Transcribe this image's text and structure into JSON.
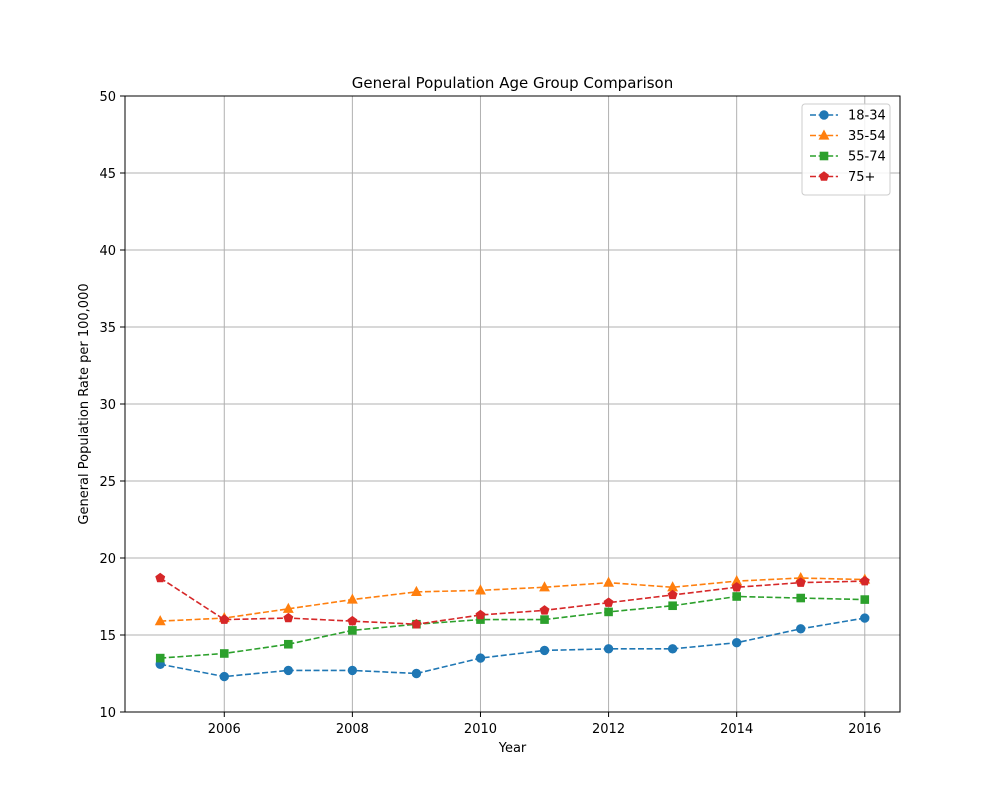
{
  "chart_data": {
    "type": "line",
    "title": "General Population Age Group Comparison",
    "xlabel": "Year",
    "ylabel": "General Population Rate per 100,000",
    "x": [
      2005,
      2006,
      2007,
      2008,
      2009,
      2010,
      2011,
      2012,
      2013,
      2014,
      2015,
      2016
    ],
    "xlim": [
      2004.45,
      2016.55
    ],
    "ylim": [
      10,
      50
    ],
    "xticks": [
      2006,
      2008,
      2010,
      2012,
      2014,
      2016
    ],
    "yticks": [
      10,
      15,
      20,
      25,
      30,
      35,
      40,
      45,
      50
    ],
    "grid": true,
    "legend_position": "top-right",
    "series": [
      {
        "name": "18-34",
        "color": "#1f77b4",
        "marker": "circle",
        "values": [
          13.1,
          12.3,
          12.7,
          12.7,
          12.5,
          13.5,
          14.0,
          14.1,
          14.1,
          14.5,
          15.4,
          16.1
        ]
      },
      {
        "name": "35-54",
        "color": "#ff7f0e",
        "marker": "triangle",
        "values": [
          15.9,
          16.1,
          16.7,
          17.3,
          17.8,
          17.9,
          18.1,
          18.4,
          18.1,
          18.5,
          18.7,
          18.6
        ]
      },
      {
        "name": "55-74",
        "color": "#2ca02c",
        "marker": "square",
        "values": [
          13.5,
          13.8,
          14.4,
          15.3,
          15.7,
          16.0,
          16.0,
          16.5,
          16.9,
          17.5,
          17.4,
          17.3
        ]
      },
      {
        "name": "75+",
        "color": "#d62728",
        "marker": "pentagon",
        "values": [
          18.7,
          16.0,
          16.1,
          15.9,
          15.7,
          16.3,
          16.6,
          17.1,
          17.6,
          18.1,
          18.4,
          18.5
        ]
      }
    ]
  }
}
